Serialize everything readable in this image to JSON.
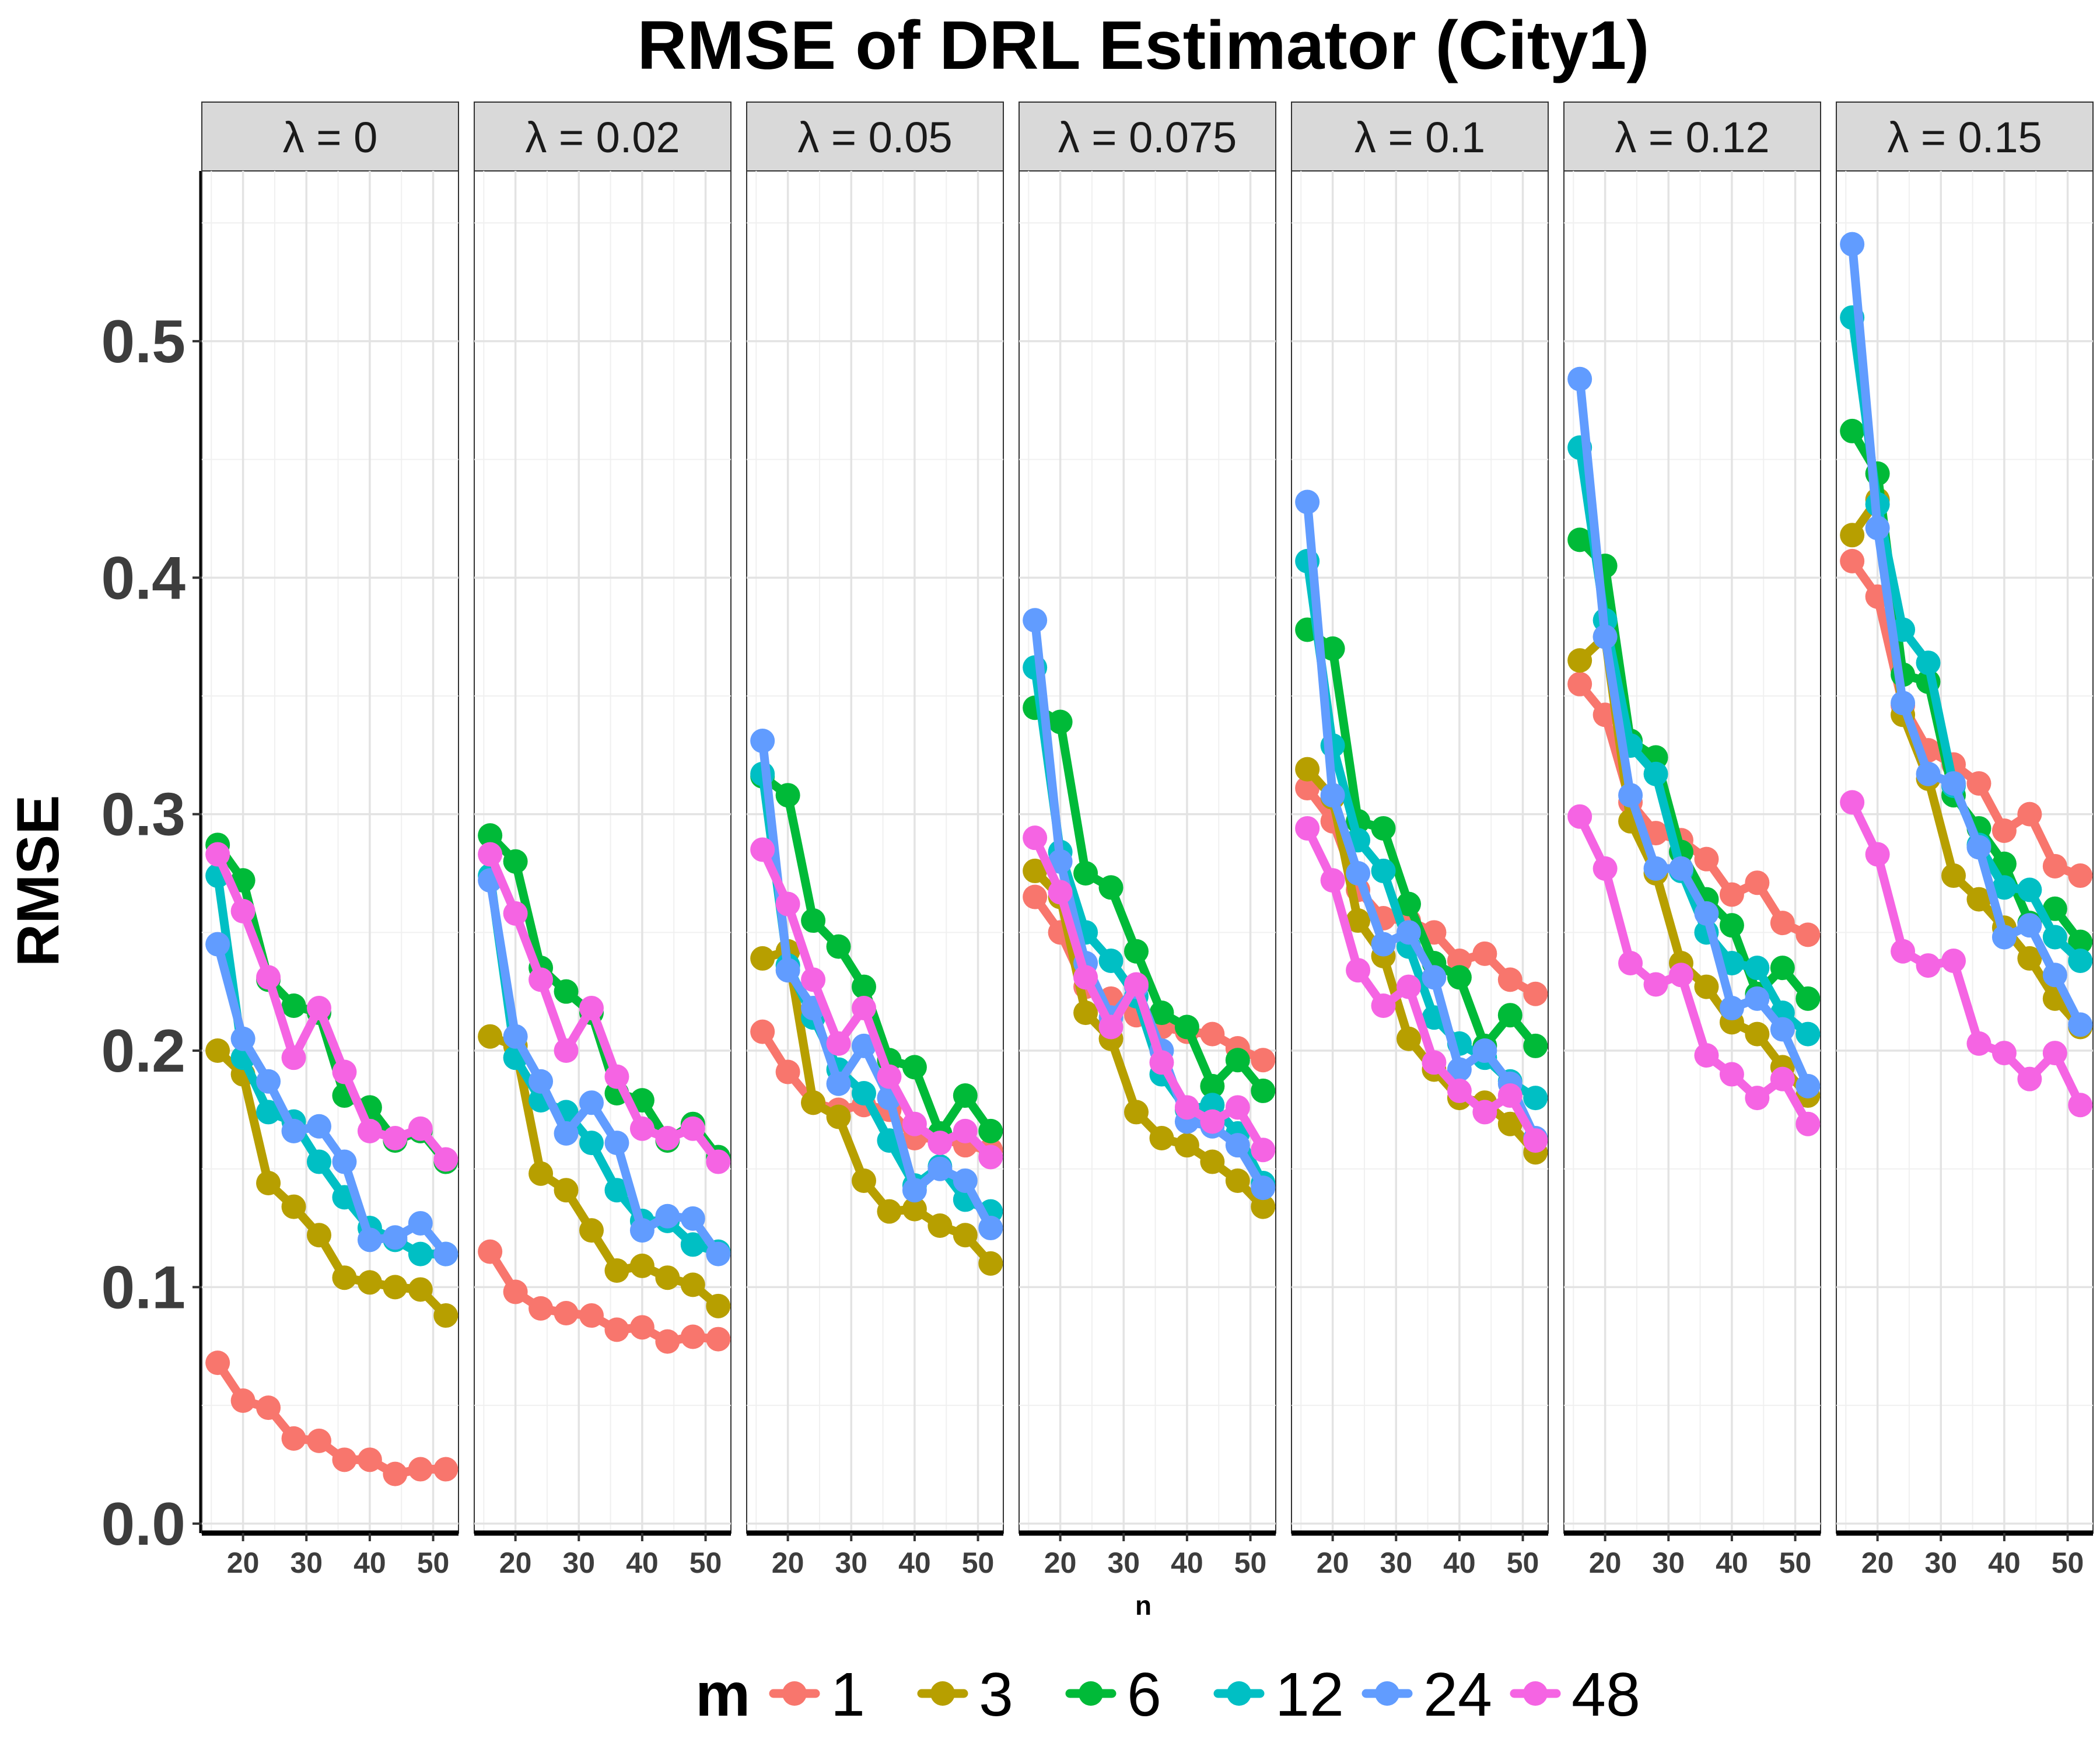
{
  "chart_data": {
    "type": "line",
    "title": "RMSE of DRL Estimator (City1)",
    "xlabel": "n",
    "ylabel": "RMSE",
    "ylim": [
      -0.004,
      0.572
    ],
    "xlim": [
      13.5,
      54
    ],
    "x_ticks": [
      20,
      30,
      40,
      50
    ],
    "y_ticks": [
      0.0,
      0.1,
      0.2,
      0.3,
      0.4,
      0.5
    ],
    "y_tick_labels": [
      "0.0",
      "0.1",
      "0.2",
      "0.3",
      "0.4",
      "0.5"
    ],
    "x_tick_labels": [
      "20",
      "30",
      "40",
      "50"
    ],
    "grid": true,
    "legend": {
      "title": "m",
      "position": "bottom",
      "labels": [
        "1",
        "3",
        "6",
        "12",
        "24",
        "48"
      ]
    },
    "colors": [
      "#F8766D",
      "#B79F00",
      "#00BA38",
      "#00BFC4",
      "#619CFF",
      "#F564E3"
    ],
    "x": [
      16,
      20,
      24,
      28,
      32,
      36,
      40,
      44,
      48,
      52
    ],
    "panels": [
      {
        "label": "λ = 0",
        "series": [
          {
            "values": [
              0.068,
              0.052,
              0.049,
              0.036,
              0.035,
              0.027,
              0.027,
              0.021,
              0.023,
              0.023
            ]
          },
          {
            "values": [
              0.2,
              0.19,
              0.144,
              0.134,
              0.122,
              0.104,
              0.102,
              0.1,
              0.099,
              0.088
            ]
          },
          {
            "values": [
              0.287,
              0.272,
              0.23,
              0.219,
              0.216,
              0.181,
              0.176,
              0.162,
              0.166,
              0.153
            ]
          },
          {
            "values": [
              0.274,
              0.197,
              0.174,
              0.17,
              0.153,
              0.138,
              0.125,
              0.12,
              0.114,
              0.114
            ]
          },
          {
            "values": [
              0.245,
              0.205,
              0.187,
              0.166,
              0.168,
              0.153,
              0.12,
              0.121,
              0.127,
              0.114
            ]
          },
          {
            "values": [
              0.283,
              0.259,
              0.231,
              0.197,
              0.218,
              0.191,
              0.166,
              0.163,
              0.167,
              0.154
            ]
          }
        ]
      },
      {
        "label": "λ = 0.02",
        "series": [
          {
            "values": [
              0.115,
              0.098,
              0.091,
              0.089,
              0.088,
              0.082,
              0.083,
              0.077,
              0.079,
              0.078
            ]
          },
          {
            "values": [
              0.206,
              0.202,
              0.148,
              0.141,
              0.124,
              0.107,
              0.109,
              0.104,
              0.101,
              0.092
            ]
          },
          {
            "values": [
              0.291,
              0.28,
              0.235,
              0.225,
              0.216,
              0.182,
              0.179,
              0.162,
              0.169,
              0.155
            ]
          },
          {
            "values": [
              0.274,
              0.197,
              0.179,
              0.174,
              0.161,
              0.141,
              0.128,
              0.128,
              0.118,
              0.115
            ]
          },
          {
            "values": [
              0.272,
              0.206,
              0.187,
              0.165,
              0.178,
              0.161,
              0.124,
              0.13,
              0.129,
              0.114
            ]
          },
          {
            "values": [
              0.283,
              0.258,
              0.23,
              0.2,
              0.218,
              0.189,
              0.167,
              0.163,
              0.167,
              0.153
            ]
          }
        ]
      },
      {
        "label": "λ = 0.05",
        "series": [
          {
            "values": [
              0.208,
              0.191,
              0.178,
              0.175,
              0.177,
              0.175,
              0.163,
              0.163,
              0.16,
              0.158
            ]
          },
          {
            "values": [
              0.239,
              0.242,
              0.178,
              0.172,
              0.145,
              0.132,
              0.133,
              0.126,
              0.122,
              0.11
            ]
          },
          {
            "values": [
              0.316,
              0.308,
              0.255,
              0.244,
              0.227,
              0.196,
              0.193,
              0.165,
              0.181,
              0.166
            ]
          },
          {
            "values": [
              0.317,
              0.236,
              0.214,
              0.192,
              0.182,
              0.162,
              0.143,
              0.151,
              0.137,
              0.132
            ]
          },
          {
            "values": [
              0.331,
              0.234,
              0.218,
              0.186,
              0.202,
              0.18,
              0.141,
              0.15,
              0.145,
              0.125
            ]
          },
          {
            "values": [
              0.285,
              0.262,
              0.23,
              0.203,
              0.218,
              0.189,
              0.169,
              0.161,
              0.166,
              0.155
            ]
          }
        ]
      },
      {
        "label": "λ = 0.075",
        "series": [
          {
            "values": [
              0.265,
              0.25,
              0.227,
              0.222,
              0.215,
              0.21,
              0.208,
              0.207,
              0.201,
              0.196
            ]
          },
          {
            "values": [
              0.276,
              0.265,
              0.216,
              0.205,
              0.174,
              0.163,
              0.16,
              0.153,
              0.145,
              0.134
            ]
          },
          {
            "values": [
              0.345,
              0.339,
              0.275,
              0.269,
              0.242,
              0.216,
              0.21,
              0.185,
              0.196,
              0.183
            ]
          },
          {
            "values": [
              0.362,
              0.284,
              0.25,
              0.238,
              0.223,
              0.19,
              0.175,
              0.177,
              0.165,
              0.144
            ]
          },
          {
            "values": [
              0.382,
              0.28,
              0.237,
              0.214,
              0.227,
              0.2,
              0.17,
              0.168,
              0.16,
              0.142
            ]
          },
          {
            "values": [
              0.29,
              0.267,
              0.231,
              0.21,
              0.228,
              0.195,
              0.176,
              0.17,
              0.176,
              0.158
            ]
          }
        ]
      },
      {
        "label": "λ = 0.1",
        "series": [
          {
            "values": [
              0.311,
              0.297,
              0.268,
              0.256,
              0.255,
              0.25,
              0.238,
              0.241,
              0.23,
              0.224
            ]
          },
          {
            "values": [
              0.319,
              0.307,
              0.255,
              0.24,
              0.205,
              0.192,
              0.18,
              0.178,
              0.169,
              0.157
            ]
          },
          {
            "values": [
              0.378,
              0.37,
              0.297,
              0.294,
              0.262,
              0.237,
              0.231,
              0.202,
              0.215,
              0.202
            ]
          },
          {
            "values": [
              0.407,
              0.329,
              0.289,
              0.276,
              0.244,
              0.214,
              0.203,
              0.197,
              0.187,
              0.18
            ]
          },
          {
            "values": [
              0.432,
              0.308,
              0.275,
              0.245,
              0.25,
              0.231,
              0.192,
              0.2,
              0.186,
              0.163
            ]
          },
          {
            "values": [
              0.294,
              0.272,
              0.234,
              0.219,
              0.227,
              0.195,
              0.183,
              0.174,
              0.181,
              0.162
            ]
          }
        ]
      },
      {
        "label": "λ = 0.12",
        "series": [
          {
            "values": [
              0.355,
              0.342,
              0.305,
              0.292,
              0.289,
              0.281,
              0.266,
              0.271,
              0.254,
              0.249
            ]
          },
          {
            "values": [
              0.365,
              0.375,
              0.297,
              0.275,
              0.237,
              0.227,
              0.212,
              0.207,
              0.193,
              0.181
            ]
          },
          {
            "values": [
              0.416,
              0.405,
              0.331,
              0.324,
              0.284,
              0.264,
              0.253,
              0.224,
              0.235,
              0.222
            ]
          },
          {
            "values": [
              0.455,
              0.382,
              0.329,
              0.317,
              0.276,
              0.25,
              0.237,
              0.235,
              0.216,
              0.207
            ]
          },
          {
            "values": [
              0.484,
              0.375,
              0.308,
              0.277,
              0.277,
              0.258,
              0.218,
              0.222,
              0.209,
              0.185
            ]
          },
          {
            "values": [
              0.299,
              0.277,
              0.237,
              0.228,
              0.232,
              0.198,
              0.19,
              0.18,
              0.188,
              0.169
            ]
          }
        ]
      },
      {
        "label": "λ = 0.15",
        "series": [
          {
            "values": [
              0.407,
              0.392,
              0.346,
              0.327,
              0.321,
              0.313,
              0.293,
              0.3,
              0.278,
              0.274
            ]
          },
          {
            "values": [
              0.418,
              0.433,
              0.342,
              0.315,
              0.274,
              0.264,
              0.252,
              0.239,
              0.222,
              0.21
            ]
          },
          {
            "values": [
              0.462,
              0.444,
              0.359,
              0.356,
              0.308,
              0.294,
              0.279,
              0.254,
              0.26,
              0.246
            ]
          },
          {
            "values": [
              0.51,
              0.431,
              0.378,
              0.364,
              0.312,
              0.287,
              0.269,
              0.268,
              0.248,
              0.238
            ]
          },
          {
            "values": [
              0.541,
              0.421,
              0.347,
              0.317,
              0.313,
              0.286,
              0.248,
              0.253,
              0.232,
              0.211
            ]
          },
          {
            "values": [
              0.305,
              0.283,
              0.242,
              0.236,
              0.238,
              0.203,
              0.199,
              0.188,
              0.199,
              0.177
            ]
          }
        ]
      }
    ]
  }
}
